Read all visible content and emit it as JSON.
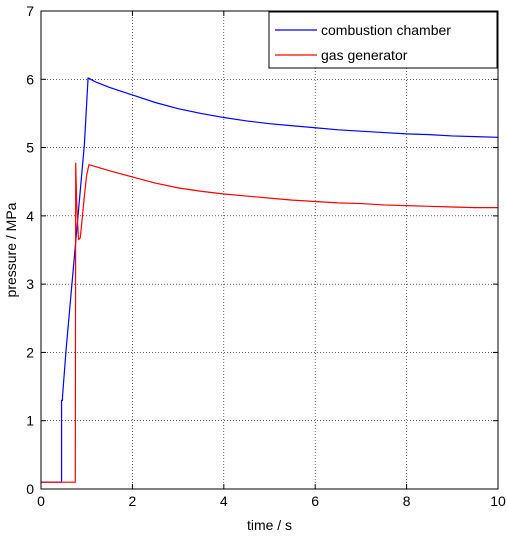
{
  "chart_data": {
    "type": "line",
    "title": "",
    "xlabel": "time / s",
    "ylabel": "pressure / MPa",
    "xlim": [
      0,
      10
    ],
    "ylim": [
      0,
      7
    ],
    "xticks": [
      "0",
      "2",
      "4",
      "6",
      "8",
      "10"
    ],
    "yticks": [
      "0",
      "1",
      "2",
      "3",
      "4",
      "5",
      "6",
      "7"
    ],
    "grid": true,
    "grid_style": "dotted",
    "legend_position": "top-right",
    "series": [
      {
        "name": "combustion chamber",
        "color": "#0000ff",
        "x": [
          0,
          0.45,
          0.45,
          0.47,
          0.47,
          0.55,
          0.65,
          0.75,
          0.85,
          0.95,
          1.03,
          1.2,
          1.5,
          2.0,
          2.5,
          3.0,
          3.5,
          4.0,
          4.5,
          5.0,
          5.5,
          6.0,
          6.5,
          7.0,
          7.5,
          8.0,
          8.5,
          9.0,
          9.5,
          10.0
        ],
        "y": [
          0.1,
          0.1,
          1.3,
          1.3,
          1.35,
          2.05,
          2.8,
          3.55,
          4.3,
          5.05,
          6.02,
          5.96,
          5.88,
          5.77,
          5.66,
          5.57,
          5.5,
          5.44,
          5.39,
          5.35,
          5.32,
          5.29,
          5.26,
          5.24,
          5.22,
          5.2,
          5.19,
          5.17,
          5.16,
          5.15
        ]
      },
      {
        "name": "gas generator",
        "color": "#ff0000",
        "x": [
          0,
          0.75,
          0.76,
          0.78,
          0.82,
          0.86,
          0.9,
          0.95,
          1.0,
          1.05,
          1.2,
          1.5,
          2.0,
          2.5,
          3.0,
          3.5,
          4.0,
          4.5,
          5.0,
          5.5,
          6.0,
          6.5,
          7.0,
          7.5,
          8.0,
          8.5,
          9.0,
          9.5,
          10.0
        ],
        "y": [
          0.1,
          0.1,
          4.77,
          4.2,
          3.65,
          3.68,
          3.95,
          4.3,
          4.6,
          4.75,
          4.72,
          4.66,
          4.57,
          4.48,
          4.41,
          4.36,
          4.32,
          4.29,
          4.26,
          4.23,
          4.21,
          4.19,
          4.18,
          4.16,
          4.15,
          4.14,
          4.13,
          4.12,
          4.12
        ]
      }
    ]
  }
}
